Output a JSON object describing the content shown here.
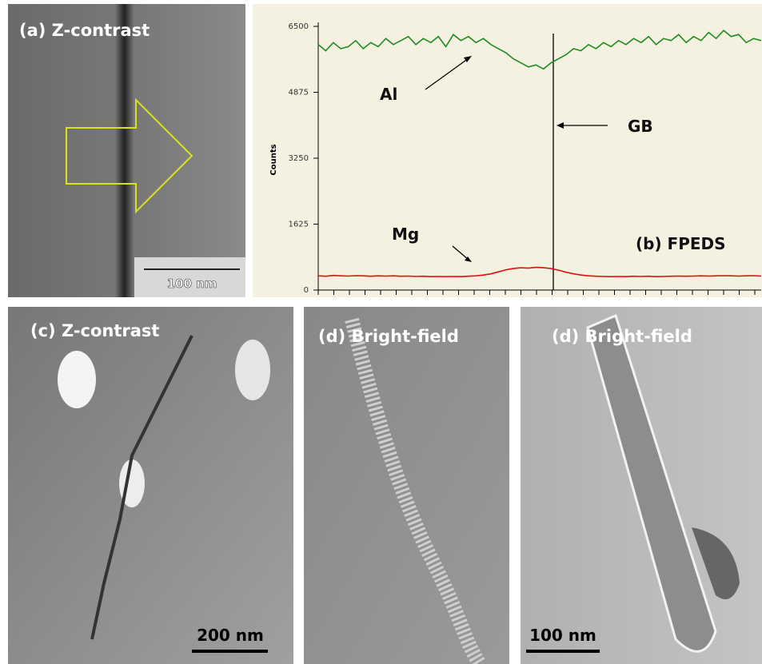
{
  "panels": [
    {
      "label": "(a) Z-contrast",
      "scale_bar": "100 nm"
    },
    {
      "label": "(c) Z-contrast",
      "scale_bar": "200 nm"
    },
    {
      "label": "(d) Bright-field"
    },
    {
      "label": "(d) Bright-field",
      "scale_bar": "100 nm"
    }
  ],
  "chart_data": {
    "type": "line",
    "y_label": "Counts",
    "ylim": [
      0,
      6500
    ],
    "yticks": [
      0,
      1625,
      3250,
      4875,
      6500
    ],
    "annotations": [
      "Al",
      "Mg",
      "GB",
      "(b) FPEDS"
    ],
    "series": [
      {
        "name": "Al",
        "color": "#1e8c1e",
        "values": [
          6050,
          5900,
          6100,
          5950,
          6000,
          6150,
          5950,
          6100,
          6000,
          6200,
          6050,
          6150,
          6250,
          6050,
          6200,
          6100,
          6250,
          6000,
          6300,
          6150,
          6250,
          6100,
          6200,
          6050,
          5950,
          5850,
          5700,
          5600,
          5500,
          5550,
          5450,
          5600,
          5700,
          5800,
          5950,
          5900,
          6050,
          5950,
          6100,
          6000,
          6150,
          6050,
          6200,
          6100,
          6250,
          6050,
          6200,
          6150,
          6300,
          6100,
          6250,
          6150,
          6350,
          6200,
          6400,
          6250,
          6300,
          6100,
          6200,
          6150
        ]
      },
      {
        "name": "Mg",
        "color": "#e01010",
        "values": [
          350,
          340,
          360,
          350,
          345,
          355,
          350,
          340,
          350,
          345,
          350,
          340,
          345,
          335,
          340,
          330,
          335,
          330,
          335,
          330,
          340,
          350,
          370,
          400,
          450,
          500,
          530,
          550,
          540,
          560,
          550,
          530,
          490,
          440,
          400,
          370,
          350,
          340,
          335,
          330,
          335,
          330,
          340,
          335,
          340,
          330,
          335,
          340,
          345,
          340,
          345,
          350,
          345,
          350,
          355,
          350,
          345,
          350,
          355,
          345
        ]
      }
    ]
  }
}
